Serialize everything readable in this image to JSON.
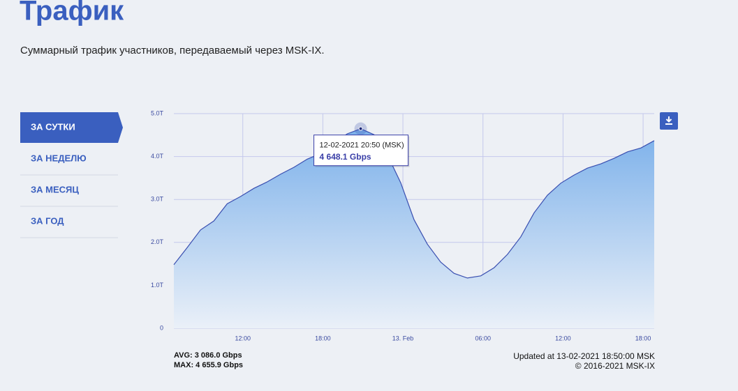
{
  "header": {
    "title": "Трафик",
    "subtitle": "Суммарный трафик участников, передаваемый через MSK-IX."
  },
  "tabs": [
    {
      "label": "ЗА СУТКИ",
      "active": true
    },
    {
      "label": "ЗА НЕДЕЛЮ",
      "active": false
    },
    {
      "label": "ЗА МЕСЯЦ",
      "active": false
    },
    {
      "label": "ЗА ГОД",
      "active": false
    }
  ],
  "chart_data": {
    "type": "area",
    "color": "#3a4fb0",
    "grid": true,
    "x": [
      "12-02-2021 06:50",
      "12-02-2021 07:50",
      "12-02-2021 08:50",
      "12-02-2021 09:50",
      "12-02-2021 10:50",
      "12-02-2021 11:50",
      "12-02-2021 12:50",
      "12-02-2021 13:50",
      "12-02-2021 14:50",
      "12-02-2021 15:50",
      "12-02-2021 16:50",
      "12-02-2021 17:50",
      "12-02-2021 18:50",
      "12-02-2021 19:50",
      "12-02-2021 20:50",
      "12-02-2021 21:50",
      "12-02-2021 22:50",
      "12-02-2021 23:50",
      "13-02-2021 00:50",
      "13-02-2021 01:50",
      "13-02-2021 02:50",
      "13-02-2021 03:50",
      "13-02-2021 04:50",
      "13-02-2021 05:50",
      "13-02-2021 06:50",
      "13-02-2021 07:50",
      "13-02-2021 08:50",
      "13-02-2021 09:50",
      "13-02-2021 10:50",
      "13-02-2021 11:50",
      "13-02-2021 12:50",
      "13-02-2021 13:50",
      "13-02-2021 14:50",
      "13-02-2021 15:50",
      "13-02-2021 16:50",
      "13-02-2021 17:50",
      "13-02-2021 18:50"
    ],
    "values": [
      1.48,
      1.88,
      2.29,
      2.5,
      2.9,
      3.07,
      3.26,
      3.41,
      3.59,
      3.75,
      3.94,
      4.07,
      4.32,
      4.53,
      4.648,
      4.51,
      4.04,
      3.39,
      2.53,
      1.96,
      1.54,
      1.28,
      1.17,
      1.22,
      1.41,
      1.72,
      2.13,
      2.69,
      3.1,
      3.38,
      3.57,
      3.73,
      3.83,
      3.96,
      4.11,
      4.2,
      4.37
    ],
    "xlim": [
      "12-02-2021 06:50",
      "13-02-2021 18:50"
    ],
    "xticks": [
      {
        "value": "12-02-2021 12:00",
        "label": "12:00"
      },
      {
        "value": "12-02-2021 18:00",
        "label": "18:00"
      },
      {
        "value": "13-02-2021 00:00",
        "label": "13. Feb"
      },
      {
        "value": "13-02-2021 06:00",
        "label": "06:00"
      },
      {
        "value": "13-02-2021 12:00",
        "label": "12:00"
      },
      {
        "value": "13-02-2021 18:00",
        "label": "18:00"
      }
    ],
    "ylim": [
      0,
      5
    ],
    "yticks": [
      0,
      {
        "value": 1,
        "label": "1.0T"
      },
      {
        "value": 2,
        "label": "2.0T"
      },
      {
        "value": 3,
        "label": "3.0T"
      },
      {
        "value": 4,
        "label": "4.0T"
      },
      {
        "value": 5,
        "label": "5.0T"
      }
    ],
    "tooltip": {
      "time": "12-02-2021 20:50 (MSK)",
      "value": "4 648.1 Gbps"
    }
  },
  "stats": {
    "avg": "AVG: 3 086.0 Gbps",
    "max": "MAX: 4 655.9 Gbps"
  },
  "footer": {
    "updated": "Updated at 13-02-2021 18:50:00 MSK",
    "copyright": "© 2016-2021 MSK-IX"
  }
}
